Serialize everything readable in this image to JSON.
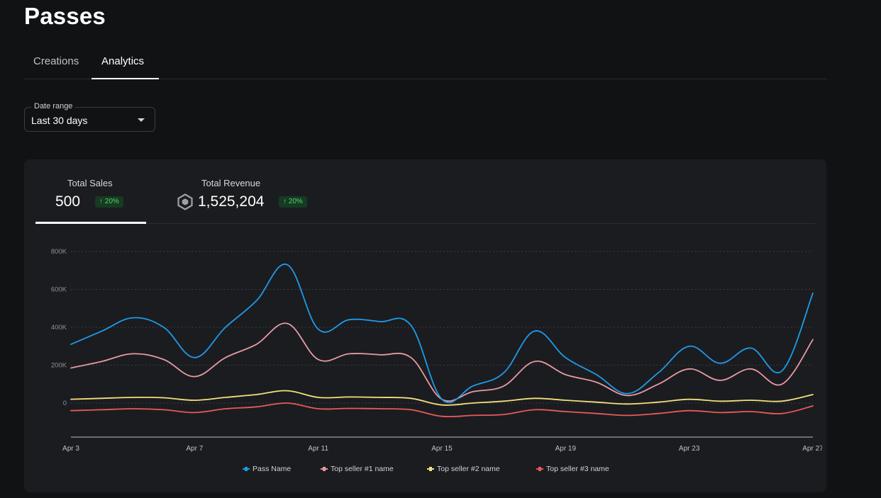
{
  "page": {
    "title": "Passes"
  },
  "tabs": [
    {
      "label": "Creations",
      "active": false
    },
    {
      "label": "Analytics",
      "active": true
    }
  ],
  "date_range": {
    "label": "Date range",
    "value": "Last 30 days"
  },
  "metrics": {
    "total_sales": {
      "label": "Total Sales",
      "value": "500",
      "change": "↑ 20%"
    },
    "total_revenue": {
      "label": "Total Revenue",
      "value": "1,525,204",
      "change": "↑ 20%",
      "icon": "robux-icon"
    }
  },
  "colors": {
    "pass": "#1e9be8",
    "top1": "#e79aa2",
    "top2": "#f2e07a",
    "top3": "#e85a5a",
    "badge_bg": "#163a22",
    "badge_fg": "#53d86a"
  },
  "chart_data": {
    "type": "line",
    "x": [
      "Apr 3",
      "Apr 4",
      "Apr 5",
      "Apr 6",
      "Apr 7",
      "Apr 8",
      "Apr 9",
      "Apr 10",
      "Apr 11",
      "Apr 12",
      "Apr 13",
      "Apr 14",
      "Apr 15",
      "Apr 16",
      "Apr 17",
      "Apr 18",
      "Apr 19",
      "Apr 20",
      "Apr 21",
      "Apr 22",
      "Apr 23",
      "Apr 24",
      "Apr 25",
      "Apr 26",
      "Apr 27"
    ],
    "x_ticks": [
      "Apr 3",
      "Apr 7",
      "Apr 11",
      "Apr 15",
      "Apr 19",
      "Apr 23",
      "Apr 27"
    ],
    "y_ticks": [
      "800K",
      "600K",
      "400K",
      "200K",
      "0"
    ],
    "ylim": [
      -200000,
      800000
    ],
    "grid": true,
    "legend": "bottom",
    "series": [
      {
        "name": "Pass Name",
        "color": "#1e9be8",
        "values": [
          310000,
          380000,
          450000,
          400000,
          240000,
          400000,
          540000,
          730000,
          390000,
          440000,
          430000,
          410000,
          20000,
          90000,
          160000,
          380000,
          240000,
          150000,
          50000,
          160000,
          300000,
          210000,
          290000,
          170000,
          580000
        ]
      },
      {
        "name": "Top seller #1 name",
        "color": "#e79aa2",
        "values": [
          185000,
          220000,
          260000,
          230000,
          140000,
          240000,
          310000,
          420000,
          230000,
          260000,
          255000,
          240000,
          20000,
          60000,
          90000,
          220000,
          150000,
          110000,
          40000,
          100000,
          180000,
          120000,
          180000,
          100000,
          335000
        ]
      },
      {
        "name": "Top seller #2 name",
        "color": "#f2e07a",
        "values": [
          20000,
          25000,
          30000,
          28000,
          15000,
          30000,
          45000,
          65000,
          30000,
          32000,
          30000,
          25000,
          -10000,
          0,
          10000,
          25000,
          15000,
          5000,
          -5000,
          5000,
          20000,
          10000,
          15000,
          10000,
          45000
        ]
      },
      {
        "name": "Top seller #3 name",
        "color": "#e85a5a",
        "values": [
          -40000,
          -35000,
          -30000,
          -35000,
          -50000,
          -30000,
          -20000,
          0,
          -30000,
          -28000,
          -30000,
          -35000,
          -70000,
          -65000,
          -60000,
          -35000,
          -45000,
          -55000,
          -65000,
          -55000,
          -40000,
          -50000,
          -45000,
          -55000,
          -15000
        ]
      }
    ]
  }
}
